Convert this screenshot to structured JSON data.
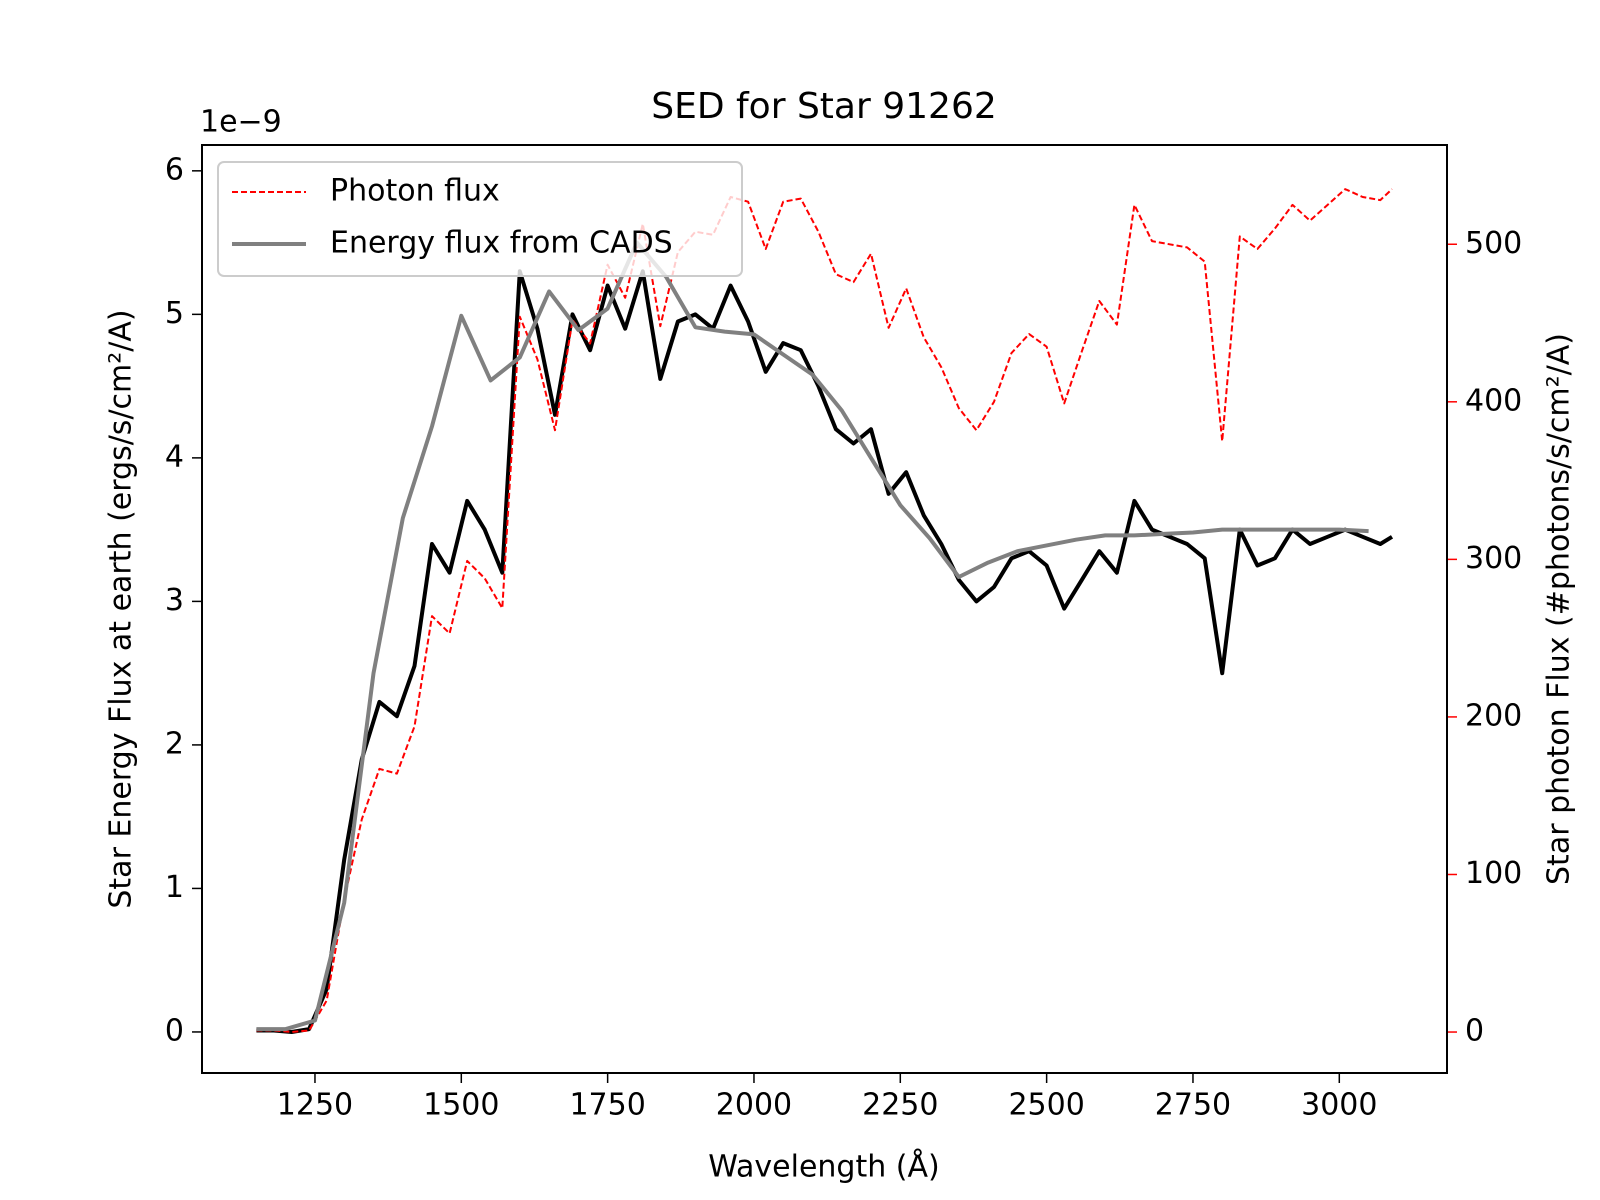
{
  "chart_data": {
    "type": "line",
    "title": "SED for Star 91262",
    "xlabel": "Wavelength (Å)",
    "ylabel": "Star Energy Flux at earth (ergs/s/cm²/A)",
    "y2label": "Star photon Flux (#photons/s/cm²/A)",
    "y_offset_label": "1e−9",
    "y2_color": "#ff0000",
    "legend": "upper left",
    "xlim": [
      1057,
      3184
    ],
    "xticks": [
      1250,
      1500,
      1750,
      2000,
      2250,
      2500,
      2750,
      3000
    ],
    "ylim": [
      -0.286,
      6.18
    ],
    "yticks": [
      0,
      1,
      2,
      3,
      4,
      5,
      6
    ],
    "y2lim": [
      -26,
      563
    ],
    "y2ticks": [
      0,
      100,
      200,
      300,
      400,
      500
    ],
    "series": [
      {
        "color": "#000000",
        "axis": "y",
        "style": "solid",
        "x": [
          1150,
          1180,
          1210,
          1240,
          1270,
          1300,
          1330,
          1360,
          1390,
          1420,
          1450,
          1480,
          1510,
          1540,
          1570,
          1600,
          1630,
          1660,
          1690,
          1720,
          1750,
          1780,
          1810,
          1840,
          1870,
          1900,
          1930,
          1960,
          1990,
          2020,
          2050,
          2080,
          2110,
          2140,
          2170,
          2200,
          2230,
          2260,
          2290,
          2320,
          2350,
          2380,
          2410,
          2440,
          2470,
          2500,
          2530,
          2560,
          2590,
          2620,
          2650,
          2680,
          2710,
          2740,
          2770,
          2800,
          2830,
          2860,
          2890,
          2920,
          2950,
          2980,
          3010,
          3040,
          3070,
          3090
        ],
        "values": [
          0.01,
          0.01,
          0.0,
          0.02,
          0.3,
          1.2,
          1.9,
          2.3,
          2.2,
          2.55,
          3.4,
          3.2,
          3.7,
          3.5,
          3.2,
          5.3,
          4.9,
          4.3,
          5.0,
          4.75,
          5.2,
          4.9,
          5.3,
          4.55,
          4.95,
          5.0,
          4.9,
          5.2,
          4.95,
          4.6,
          4.8,
          4.75,
          4.5,
          4.2,
          4.1,
          4.2,
          3.75,
          3.9,
          3.6,
          3.4,
          3.15,
          3.0,
          3.1,
          3.3,
          3.35,
          3.25,
          2.95,
          3.15,
          3.35,
          3.2,
          3.7,
          3.5,
          3.45,
          3.4,
          3.3,
          2.5,
          3.5,
          3.25,
          3.3,
          3.5,
          3.4,
          3.45,
          3.5,
          3.45,
          3.4,
          3.45
        ]
      },
      {
        "name": "Photon flux",
        "color": "#ff0000",
        "axis": "y2",
        "style": "dashed",
        "x": [
          1150,
          1180,
          1210,
          1240,
          1270,
          1300,
          1330,
          1360,
          1390,
          1420,
          1450,
          1480,
          1510,
          1540,
          1570,
          1600,
          1630,
          1660,
          1690,
          1720,
          1750,
          1780,
          1810,
          1840,
          1870,
          1900,
          1930,
          1960,
          1990,
          2020,
          2050,
          2080,
          2110,
          2140,
          2170,
          2200,
          2230,
          2260,
          2290,
          2320,
          2350,
          2380,
          2410,
          2440,
          2470,
          2500,
          2530,
          2560,
          2590,
          2620,
          2650,
          2680,
          2710,
          2740,
          2770,
          2800,
          2830,
          2860,
          2890,
          2920,
          2950,
          2980,
          3010,
          3040,
          3070,
          3090
        ],
        "values": [
          1,
          1,
          0,
          1,
          20,
          84,
          135,
          167,
          164,
          194,
          264,
          253,
          299,
          288,
          269,
          454,
          427,
          382,
          452,
          437,
          487,
          466,
          513,
          448,
          495,
          508,
          506,
          530,
          527,
          497,
          527,
          529,
          508,
          481,
          476,
          494,
          447,
          472,
          441,
          422,
          396,
          382,
          400,
          431,
          443,
          435,
          399,
          432,
          464,
          449,
          525,
          502,
          500,
          498,
          489,
          375,
          505,
          497,
          510,
          525,
          515,
          525,
          535,
          530,
          528,
          535
        ]
      },
      {
        "name": "Energy flux from CADS",
        "color": "#808080",
        "axis": "y",
        "style": "solid",
        "x": [
          1150,
          1200,
          1250,
          1300,
          1350,
          1400,
          1450,
          1500,
          1550,
          1600,
          1650,
          1700,
          1750,
          1800,
          1850,
          1900,
          1950,
          2000,
          2050,
          2100,
          2150,
          2200,
          2250,
          2300,
          2350,
          2400,
          2450,
          2500,
          2550,
          2600,
          2650,
          2700,
          2750,
          2800,
          2850,
          2900,
          2950,
          3000,
          3050
        ],
        "values": [
          0.02,
          0.02,
          0.08,
          0.9,
          2.5,
          3.58,
          4.22,
          4.99,
          4.54,
          4.7,
          5.16,
          4.89,
          5.04,
          5.5,
          5.26,
          4.91,
          4.88,
          4.86,
          4.72,
          4.58,
          4.33,
          4.0,
          3.67,
          3.44,
          3.17,
          3.27,
          3.35,
          3.39,
          3.43,
          3.46,
          3.46,
          3.47,
          3.48,
          3.5,
          3.5,
          3.5,
          3.5,
          3.5,
          3.49
        ]
      }
    ]
  }
}
